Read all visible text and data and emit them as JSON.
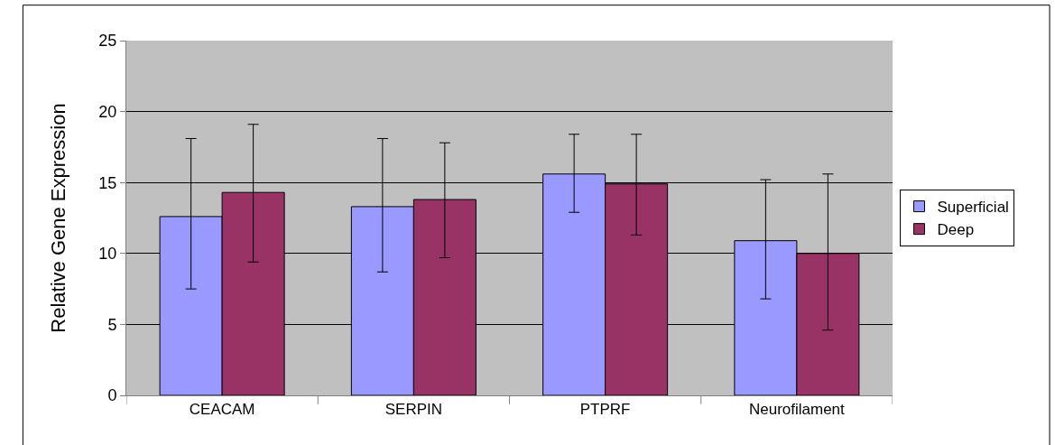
{
  "chart_data": {
    "type": "bar",
    "ylabel": "Relative Gene Expression",
    "categories": [
      "CEACAM",
      "SERPIN",
      "PTPRF",
      "Neurofilament"
    ],
    "series": [
      {
        "name": "Superficial",
        "color": "#9999ff",
        "values": [
          12.6,
          13.3,
          15.6,
          10.9
        ],
        "errors": [
          [
            7.5,
            18.1
          ],
          [
            8.7,
            18.1
          ],
          [
            12.9,
            18.4
          ],
          [
            6.8,
            15.2
          ]
        ]
      },
      {
        "name": "Deep",
        "color": "#993366",
        "values": [
          14.3,
          13.8,
          14.9,
          10.0
        ],
        "errors": [
          [
            9.4,
            19.1
          ],
          [
            9.7,
            17.8
          ],
          [
            11.3,
            18.4
          ],
          [
            4.6,
            15.6
          ]
        ]
      }
    ],
    "ylim": [
      0,
      25
    ],
    "yticks": [
      0,
      5,
      10,
      15,
      20,
      25
    ],
    "grid": "y",
    "legend": "right"
  }
}
